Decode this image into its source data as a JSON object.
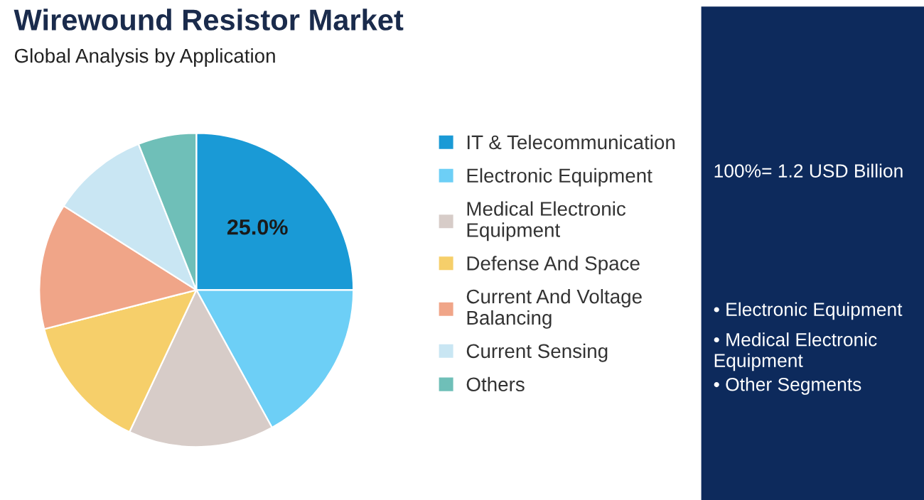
{
  "chart_data": {
    "type": "pie",
    "title": "Wirewound Resistor Market",
    "subtitle": "Global Analysis by Application",
    "categories": [
      "IT & Telecommunication",
      "Electronic Equipment",
      "Medical Electronic\nEquipment",
      "Defense And Space",
      "Current And Voltage\nBalancing",
      "Current Sensing",
      "Others"
    ],
    "values": [
      25,
      17,
      15,
      14,
      13,
      10,
      6
    ],
    "colors": [
      "#1a9ad6",
      "#6dcff6",
      "#d7ccc8",
      "#f6cf6a",
      "#f0a588",
      "#c9e6f3",
      "#6fbfb8"
    ],
    "value_labels": [
      "25.0%",
      null,
      null,
      null,
      null,
      null,
      null
    ],
    "legend": "right",
    "annotations": [
      "100%= 1.2 USD Billion",
      "• Electronic Equipment",
      "• Medical Electronic\nEquipment",
      "• Other Segments"
    ]
  }
}
